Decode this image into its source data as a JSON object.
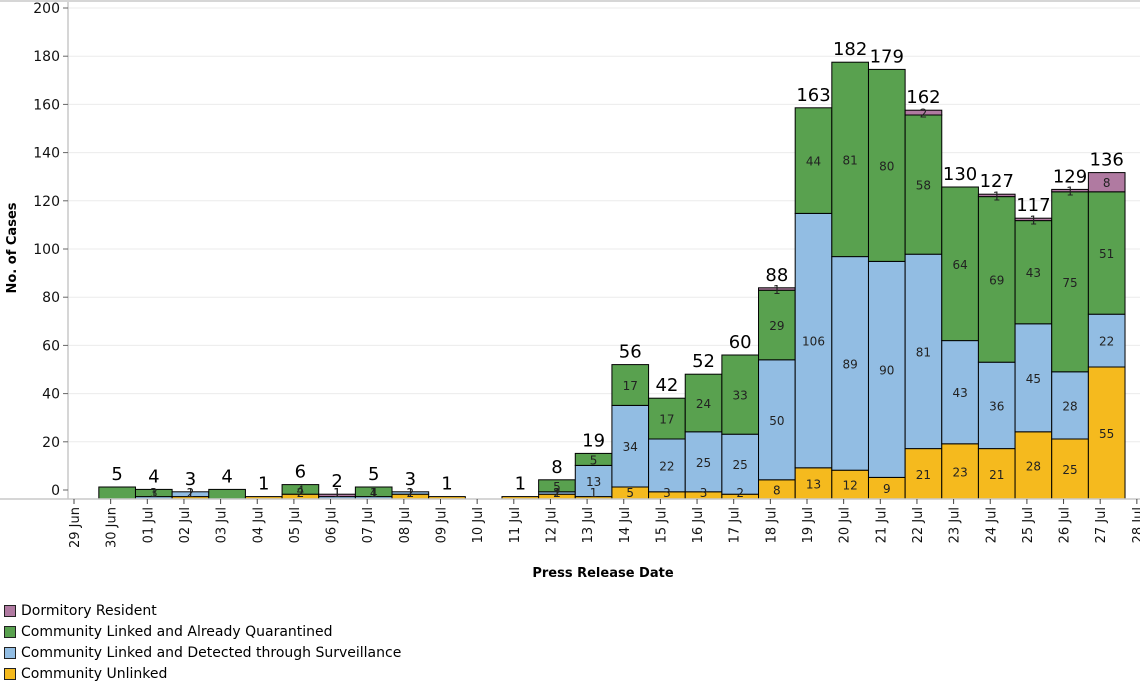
{
  "chart_data": {
    "type": "bar",
    "stacked": true,
    "title": "",
    "xlabel": "Press Release Date",
    "ylabel": "No. of Cases",
    "ylim": [
      0,
      200
    ],
    "yticks": [
      0,
      20,
      40,
      60,
      80,
      100,
      120,
      140,
      160,
      180,
      200
    ],
    "grid": true,
    "legend_position": "bottom-left",
    "x_tick_labels": [
      "29 Jun",
      "30 Jun",
      "01 Jul",
      "02 Jul",
      "03 Jul",
      "04 Jul",
      "05 Jul",
      "06 Jul",
      "07 Jul",
      "08 Jul",
      "09 Jul",
      "10 Jul",
      "11 Jul",
      "12 Jul",
      "13 Jul",
      "14 Jul",
      "15 Jul",
      "16 Jul",
      "17 Jul",
      "18 Jul",
      "19 Jul",
      "20 Jul",
      "21 Jul",
      "22 Jul",
      "23 Jul",
      "24 Jul",
      "25 Jul",
      "26 Jul",
      "27 Jul",
      "28 Jul"
    ],
    "categories": [
      "30 Jun",
      "01 Jul",
      "02 Jul",
      "03 Jul",
      "04 Jul",
      "05 Jul",
      "06 Jul",
      "07 Jul",
      "08 Jul",
      "09 Jul",
      "10 Jul",
      "11 Jul",
      "12 Jul",
      "13 Jul",
      "14 Jul",
      "15 Jul",
      "16 Jul",
      "17 Jul",
      "18 Jul",
      "19 Jul",
      "20 Jul",
      "21 Jul",
      "22 Jul",
      "23 Jul",
      "24 Jul",
      "25 Jul",
      "26 Jul",
      "27 Jul"
    ],
    "series": [
      {
        "name": "Community Unlinked",
        "color": "#f5ba1e",
        "values": [
          0,
          0,
          1,
          0,
          1,
          2,
          0,
          0,
          2,
          1,
          0,
          1,
          2,
          1,
          5,
          3,
          3,
          2,
          8,
          13,
          12,
          9,
          21,
          23,
          21,
          28,
          25,
          55
        ]
      },
      {
        "name": "Community Linked and Detected through Surveillance",
        "color": "#92bde3",
        "values": [
          0,
          1,
          2,
          0,
          0,
          0,
          1,
          1,
          1,
          0,
          0,
          0,
          1,
          13,
          34,
          22,
          25,
          25,
          50,
          106,
          89,
          90,
          81,
          43,
          36,
          45,
          28,
          22
        ]
      },
      {
        "name": "Community Linked and Already Quarantined",
        "color": "#59a14f",
        "values": [
          5,
          3,
          0,
          4,
          0,
          4,
          0,
          4,
          0,
          0,
          0,
          0,
          5,
          5,
          17,
          17,
          24,
          33,
          29,
          44,
          81,
          80,
          58,
          64,
          69,
          43,
          75,
          51
        ]
      },
      {
        "name": "Dormitory Resident",
        "color": "#b07aa1",
        "values": [
          0,
          0,
          0,
          0,
          0,
          0,
          1,
          0,
          0,
          0,
          0,
          0,
          0,
          0,
          0,
          0,
          0,
          0,
          1,
          0,
          0,
          0,
          2,
          0,
          1,
          1,
          1,
          8
        ]
      }
    ],
    "totals": [
      5,
      4,
      3,
      4,
      1,
      6,
      2,
      5,
      3,
      1,
      null,
      1,
      8,
      19,
      56,
      42,
      52,
      60,
      88,
      163,
      182,
      179,
      162,
      130,
      127,
      117,
      129,
      136
    ],
    "segment_labels_min_value": 1
  },
  "legend": {
    "items": [
      {
        "label": "Dormitory Resident",
        "color": "#b07aa1"
      },
      {
        "label": "Community Linked and Already Quarantined",
        "color": "#59a14f"
      },
      {
        "label": "Community Linked and Detected through Surveillance",
        "color": "#92bde3"
      },
      {
        "label": "Community Unlinked",
        "color": "#f5ba1e"
      }
    ]
  }
}
